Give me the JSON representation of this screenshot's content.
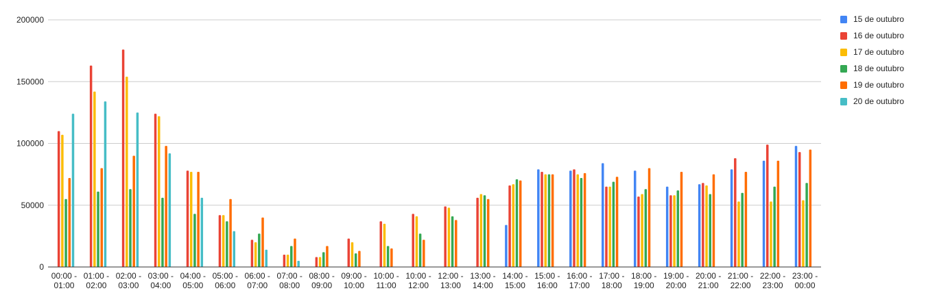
{
  "chart_data": {
    "type": "bar",
    "title": "",
    "xlabel": "",
    "ylabel": "",
    "ylim": [
      0,
      200000
    ],
    "yticks": [
      0,
      50000,
      100000,
      150000,
      200000
    ],
    "ytick_labels": [
      "0",
      "50000",
      "100000",
      "150000",
      "200000"
    ],
    "grid": true,
    "legend_position": "right",
    "categories": [
      [
        "00:00 -",
        "01:00"
      ],
      [
        "01:00 -",
        "02:00"
      ],
      [
        "02:00 -",
        "03:00"
      ],
      [
        "03:00 -",
        "04:00"
      ],
      [
        "04:00 -",
        "05:00"
      ],
      [
        "05:00 -",
        "06:00"
      ],
      [
        "06:00 -",
        "07:00"
      ],
      [
        "07:00 -",
        "08:00"
      ],
      [
        "08:00 -",
        "09:00"
      ],
      [
        "09:00 -",
        "10:00"
      ],
      [
        "10:00 -",
        "11:00"
      ],
      [
        "10:00 -",
        "12:00"
      ],
      [
        "12:00 -",
        "13:00"
      ],
      [
        "13:00 -",
        "14:00"
      ],
      [
        "14:00 -",
        "15:00"
      ],
      [
        "15:00 -",
        "16:00"
      ],
      [
        "16:00 -",
        "17:00"
      ],
      [
        "17:00 -",
        "18:00"
      ],
      [
        "18:00 -",
        "19:00"
      ],
      [
        "19:00 -",
        "20:00"
      ],
      [
        "20:00 -",
        "21:00"
      ],
      [
        "21:00 -",
        "22:00"
      ],
      [
        "22:00 -",
        "23:00"
      ],
      [
        "23:00 -",
        "00:00"
      ]
    ],
    "series": [
      {
        "name": "15 de outubro",
        "color": "#4285f4",
        "values": [
          null,
          null,
          null,
          null,
          null,
          null,
          null,
          null,
          null,
          null,
          null,
          null,
          null,
          null,
          34000,
          79000,
          78000,
          84000,
          78000,
          65000,
          67000,
          79000,
          86000,
          98000
        ]
      },
      {
        "name": "16 de outubro",
        "color": "#ea4335",
        "values": [
          110000,
          163000,
          176000,
          124000,
          78000,
          42000,
          22000,
          10000,
          8000,
          23000,
          37000,
          43000,
          49000,
          56000,
          66000,
          77000,
          79000,
          65000,
          57000,
          58000,
          68000,
          88000,
          99000,
          93000
        ]
      },
      {
        "name": "17 de outubro",
        "color": "#fbbc04",
        "values": [
          107000,
          142000,
          154000,
          122000,
          77000,
          42000,
          20000,
          10000,
          8000,
          20000,
          35000,
          41000,
          48000,
          59000,
          67000,
          75000,
          75000,
          65000,
          59000,
          58000,
          66000,
          53000,
          53000,
          54000
        ]
      },
      {
        "name": "18 de outubro",
        "color": "#34a853",
        "values": [
          55000,
          61000,
          63000,
          56000,
          43000,
          37000,
          27000,
          17000,
          12000,
          11000,
          17000,
          27000,
          41000,
          58000,
          71000,
          75000,
          72000,
          69000,
          63000,
          62000,
          59000,
          60000,
          65000,
          68000
        ]
      },
      {
        "name": "19 de outubro",
        "color": "#ff6d01",
        "values": [
          72000,
          80000,
          90000,
          98000,
          77000,
          55000,
          40000,
          23000,
          17000,
          13000,
          15000,
          22000,
          38000,
          55000,
          70000,
          75000,
          76000,
          73000,
          80000,
          77000,
          75000,
          77000,
          86000,
          95000
        ]
      },
      {
        "name": "20 de outubro",
        "color": "#46bdc6",
        "values": [
          124000,
          134000,
          125000,
          92000,
          56000,
          29000,
          14000,
          5000,
          null,
          null,
          null,
          null,
          null,
          null,
          null,
          null,
          null,
          null,
          null,
          null,
          null,
          null,
          null,
          null
        ]
      }
    ]
  }
}
